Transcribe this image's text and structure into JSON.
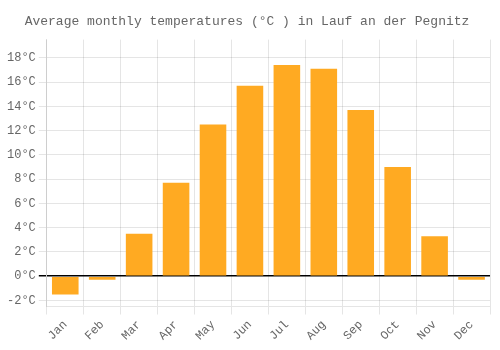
{
  "chart_data": {
    "type": "bar",
    "title": "Average monthly temperatures (°C ) in Lauf an der Pegnitz",
    "categories": [
      "Jan",
      "Feb",
      "Mar",
      "Apr",
      "May",
      "Jun",
      "Jul",
      "Aug",
      "Sep",
      "Oct",
      "Nov",
      "Dec"
    ],
    "values": [
      -1.5,
      -0.3,
      3.5,
      7.7,
      12.5,
      15.7,
      17.4,
      17.1,
      13.7,
      9.0,
      3.3,
      -0.3
    ],
    "color": "#FFAA22",
    "ylim": [
      -2.5,
      19.5
    ],
    "yticks": [
      {
        "value": -2,
        "label": "-2°C"
      },
      {
        "value": 0,
        "label": "0°C"
      },
      {
        "value": 2,
        "label": "2°C"
      },
      {
        "value": 4,
        "label": "4°C"
      },
      {
        "value": 6,
        "label": "6°C"
      },
      {
        "value": 8,
        "label": "8°C"
      },
      {
        "value": 10,
        "label": "10°C"
      },
      {
        "value": 12,
        "label": "12°C"
      },
      {
        "value": 14,
        "label": "14°C"
      },
      {
        "value": 16,
        "label": "16°C"
      },
      {
        "value": 18,
        "label": "18°C"
      }
    ],
    "grid": true
  }
}
